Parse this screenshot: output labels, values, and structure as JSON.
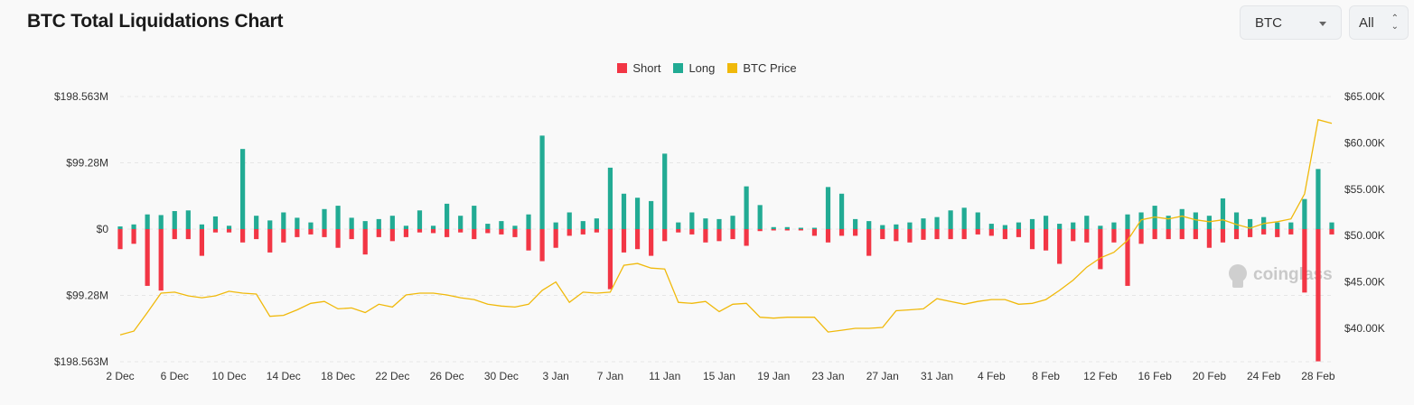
{
  "header": {
    "title": "BTC Total Liquidations Chart"
  },
  "controls": {
    "coin_select": "BTC",
    "range_select": "All"
  },
  "legend": [
    {
      "label": "Short",
      "color": "#f23645"
    },
    {
      "label": "Long",
      "color": "#22ab94"
    },
    {
      "label": "BTC Price",
      "color": "#f0b90b"
    }
  ],
  "watermark": "coinglass",
  "chart_data": {
    "type": "bar",
    "title": "BTC Total Liquidations Chart",
    "y_left_ticks": [
      "$198.563M",
      "$99.28M",
      "$0",
      "$99.28M",
      "$198.563M"
    ],
    "y_left_range": [
      -198.563,
      198.563
    ],
    "y_right_ticks": [
      "$65.00K",
      "$60.00K",
      "$55.00K",
      "$50.00K",
      "$45.00K",
      "$40.00K"
    ],
    "y_right_range": [
      36500,
      65000
    ],
    "x_ticks": [
      "2 Dec",
      "6 Dec",
      "10 Dec",
      "14 Dec",
      "18 Dec",
      "22 Dec",
      "26 Dec",
      "30 Dec",
      "3 Jan",
      "7 Jan",
      "11 Jan",
      "15 Jan",
      "19 Jan",
      "23 Jan",
      "27 Jan",
      "31 Jan",
      "4 Feb",
      "8 Feb",
      "12 Feb",
      "16 Feb",
      "20 Feb",
      "24 Feb",
      "28 Feb"
    ],
    "categories": [
      "2 Dec",
      "3 Dec",
      "4 Dec",
      "5 Dec",
      "6 Dec",
      "7 Dec",
      "8 Dec",
      "9 Dec",
      "10 Dec",
      "11 Dec",
      "12 Dec",
      "13 Dec",
      "14 Dec",
      "15 Dec",
      "16 Dec",
      "17 Dec",
      "18 Dec",
      "19 Dec",
      "20 Dec",
      "21 Dec",
      "22 Dec",
      "23 Dec",
      "24 Dec",
      "25 Dec",
      "26 Dec",
      "27 Dec",
      "28 Dec",
      "29 Dec",
      "30 Dec",
      "31 Dec",
      "1 Jan",
      "2 Jan",
      "3 Jan",
      "4 Jan",
      "5 Jan",
      "6 Jan",
      "7 Jan",
      "8 Jan",
      "9 Jan",
      "10 Jan",
      "11 Jan",
      "12 Jan",
      "13 Jan",
      "14 Jan",
      "15 Jan",
      "16 Jan",
      "17 Jan",
      "18 Jan",
      "19 Jan",
      "20 Jan",
      "21 Jan",
      "22 Jan",
      "23 Jan",
      "24 Jan",
      "25 Jan",
      "26 Jan",
      "27 Jan",
      "28 Jan",
      "29 Jan",
      "30 Jan",
      "31 Jan",
      "1 Feb",
      "2 Feb",
      "3 Feb",
      "4 Feb",
      "5 Feb",
      "6 Feb",
      "7 Feb",
      "8 Feb",
      "9 Feb",
      "10 Feb",
      "11 Feb",
      "12 Feb",
      "13 Feb",
      "14 Feb",
      "15 Feb",
      "16 Feb",
      "17 Feb",
      "18 Feb",
      "19 Feb",
      "20 Feb",
      "21 Feb",
      "22 Feb",
      "23 Feb",
      "24 Feb",
      "25 Feb",
      "26 Feb",
      "27 Feb",
      "28 Feb",
      "29 Feb"
    ],
    "series": [
      {
        "name": "Long",
        "color": "#22ab94",
        "values": [
          4,
          7,
          22,
          21,
          27,
          28,
          7,
          19,
          5,
          120,
          20,
          13,
          25,
          17,
          10,
          30,
          35,
          17,
          12,
          15,
          20,
          5,
          28,
          5,
          38,
          20,
          35,
          8,
          12,
          5,
          22,
          140,
          10,
          25,
          12,
          16,
          92,
          53,
          47,
          42,
          113,
          10,
          25,
          16,
          15,
          20,
          64,
          36,
          3,
          3,
          2,
          2,
          63,
          53,
          15,
          12,
          6,
          7,
          10,
          16,
          18,
          28,
          32,
          25,
          8,
          6,
          10,
          15,
          20,
          8,
          10,
          20,
          5,
          10,
          22,
          25,
          35,
          20,
          30,
          25,
          20,
          46,
          25,
          15,
          18,
          10,
          10,
          45,
          90,
          10
        ]
      },
      {
        "name": "Short",
        "color": "#f23645",
        "values": [
          30,
          22,
          85,
          92,
          15,
          15,
          40,
          5,
          5,
          20,
          15,
          35,
          20,
          12,
          8,
          12,
          28,
          15,
          38,
          12,
          18,
          12,
          5,
          6,
          12,
          5,
          15,
          6,
          8,
          12,
          32,
          48,
          28,
          10,
          8,
          5,
          90,
          35,
          30,
          40,
          18,
          5,
          8,
          20,
          18,
          15,
          25,
          3,
          2,
          2,
          2,
          10,
          20,
          10,
          10,
          40,
          15,
          18,
          20,
          16,
          15,
          15,
          15,
          8,
          10,
          15,
          12,
          30,
          32,
          52,
          18,
          20,
          60,
          20,
          85,
          22,
          15,
          15,
          15,
          15,
          28,
          20,
          15,
          12,
          8,
          12,
          8,
          95,
          198,
          8
        ]
      },
      {
        "name": "BTC Price",
        "color": "#f0b90b",
        "values": [
          39300,
          39700,
          41700,
          43800,
          43900,
          43500,
          43300,
          43500,
          44000,
          43800,
          43700,
          41300,
          41400,
          42000,
          42700,
          42900,
          42100,
          42200,
          41700,
          42600,
          42300,
          43600,
          43800,
          43800,
          43600,
          43300,
          43100,
          42600,
          42400,
          42300,
          42600,
          44100,
          45000,
          42800,
          43900,
          43800,
          43900,
          46800,
          47000,
          46500,
          46400,
          42800,
          42700,
          42900,
          41800,
          42600,
          42700,
          41200,
          41100,
          41200,
          41200,
          41200,
          39600,
          39800,
          40000,
          40000,
          40100,
          41900,
          42000,
          42100,
          43200,
          42900,
          42600,
          42900,
          43100,
          43100,
          42600,
          42700,
          43100,
          44100,
          45200,
          46600,
          47600,
          48200,
          49500,
          51700,
          52000,
          51800,
          52100,
          51700,
          51500,
          51700,
          51200,
          50800,
          51300,
          51500,
          51800,
          54500,
          62500,
          62100
        ]
      }
    ]
  }
}
